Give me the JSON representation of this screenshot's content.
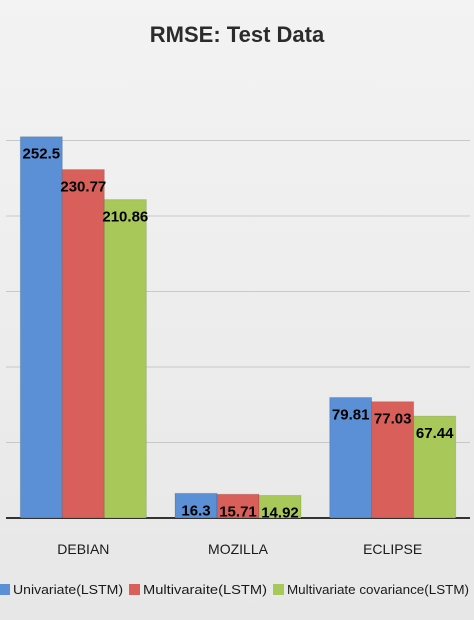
{
  "chart_data": {
    "type": "bar",
    "title": "RMSE: Test Data",
    "categories": [
      "DEBIAN",
      "MOZILLA",
      "ECLIPSE"
    ],
    "series": [
      {
        "name": "Univariate(LSTM)",
        "color": "#5b8fd6",
        "values": [
          252.5,
          16.3,
          79.81
        ],
        "labels": [
          "252.5",
          "16.3",
          "79.81"
        ]
      },
      {
        "name": "Multivaraite(LSTM)",
        "color": "#d9605a",
        "values": [
          230.77,
          15.71,
          77.03
        ],
        "labels": [
          "230.77",
          "15.71",
          "77.03"
        ]
      },
      {
        "name": "Multivariate covariance(LSTM)",
        "color": "#a8c95a",
        "values": [
          210.86,
          14.92,
          67.44
        ],
        "labels": [
          "210.86",
          "14.92",
          "67.44"
        ]
      }
    ],
    "ylim": [
      0,
      300
    ],
    "gridlines": [
      0,
      50,
      100,
      150,
      200,
      250
    ],
    "grid": true,
    "legend_position": "bottom"
  }
}
